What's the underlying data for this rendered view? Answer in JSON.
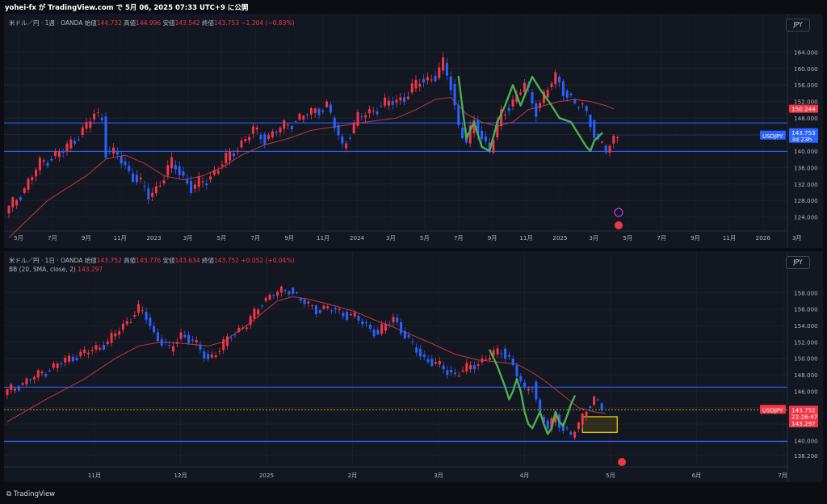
{
  "header": {
    "title": "yohei-fx が TradingView.com で 5月 06, 2025 07:33 UTC+9 に公開"
  },
  "footer": {
    "brand": "TradingView"
  },
  "colors": {
    "up": "#f23645",
    "down": "#2962ff",
    "wave": "#4caf50",
    "ma": "#c2373f",
    "hline": "#2962ff",
    "box": "#f5d60a",
    "background": "#131722"
  },
  "pane_weekly": {
    "symbol_title": "米ドル／円 · 1週 · OANDA",
    "o_label": "始値",
    "o_value": "144.732",
    "h_label": "高値",
    "h_value": "144.996",
    "l_label": "安値",
    "l_value": "143.542",
    "c_label": "終値",
    "c_value": "143.753",
    "change": "−1.204 (−0.83%)",
    "currency": "JPY",
    "price_tag": {
      "symbol": "USDJPY",
      "value": "143.753",
      "countdown": "3d 23h"
    },
    "ma_tag": "150.244"
  },
  "pane_daily": {
    "symbol_title": "米ドル／円 · 1日 · OANDA",
    "o_label": "始値",
    "o_value": "143.752",
    "h_label": "高値",
    "h_value": "143.776",
    "l_label": "安値",
    "l_value": "143.634",
    "c_label": "終値",
    "c_value": "143.752",
    "change": "+0.052 (+0.04%)",
    "indicator": "BB (20, SMA, close, 2)",
    "indicator_value": "143.297",
    "currency": "JPY",
    "price_tag": {
      "symbol": "USDJPY",
      "value": "143.752",
      "countdown": "22:26:47",
      "bb": "143.297"
    }
  },
  "chart_data": [
    {
      "type": "candlestick",
      "title": "米ドル／円 · 1週 · OANDA",
      "ylim": [
        121,
        167
      ],
      "yticks": [
        "164.000",
        "160.000",
        "156.000",
        "152.000",
        "148.000",
        "144.000",
        "140.000",
        "136.000",
        "132.000",
        "128.000",
        "124.000"
      ],
      "xticks": [
        "5月",
        "7月",
        "9月",
        "11月",
        "2023",
        "3月",
        "5月",
        "7月",
        "9月",
        "11月",
        "2024",
        "3月",
        "5月",
        "7月",
        "9月",
        "11月",
        "2025",
        "3月",
        "5月",
        "7月",
        "9月",
        "11月",
        "2026",
        "3月"
      ],
      "path": [
        [
          0,
          126
        ],
        [
          4,
          131
        ],
        [
          8,
          137
        ],
        [
          14,
          140
        ],
        [
          20,
          146
        ],
        [
          22,
          149
        ],
        [
          24,
          148
        ],
        [
          25,
          140
        ],
        [
          28,
          139
        ],
        [
          30,
          136
        ],
        [
          34,
          132
        ],
        [
          36,
          129
        ],
        [
          38,
          131
        ],
        [
          42,
          137
        ],
        [
          44,
          135
        ],
        [
          47,
          131
        ],
        [
          51,
          133
        ],
        [
          55,
          137
        ],
        [
          59,
          141
        ],
        [
          63,
          145
        ],
        [
          66,
          143
        ],
        [
          71,
          146
        ],
        [
          77,
          149
        ],
        [
          82,
          151
        ],
        [
          84,
          146
        ],
        [
          86,
          141
        ],
        [
          90,
          148
        ],
        [
          96,
          151
        ],
        [
          102,
          153
        ],
        [
          106,
          157
        ],
        [
          110,
          158
        ],
        [
          112,
          161
        ],
        [
          114,
          156
        ],
        [
          116,
          146
        ],
        [
          118,
          142
        ],
        [
          120,
          147
        ],
        [
          124,
          140
        ],
        [
          127,
          149
        ],
        [
          130,
          152
        ],
        [
          133,
          156
        ],
        [
          136,
          150
        ],
        [
          139,
          155
        ],
        [
          141,
          158
        ],
        [
          143,
          155
        ],
        [
          146,
          151
        ],
        [
          148,
          151
        ],
        [
          150,
          147
        ],
        [
          152,
          142
        ],
        [
          154,
          140
        ],
        [
          156,
          143
        ],
        [
          157,
          143.8
        ]
      ],
      "moving_average": [
        [
          0,
          119
        ],
        [
          10,
          128
        ],
        [
          20,
          134
        ],
        [
          25,
          138
        ],
        [
          30,
          139
        ],
        [
          35,
          137
        ],
        [
          40,
          134
        ],
        [
          45,
          133
        ],
        [
          50,
          134
        ],
        [
          55,
          136
        ],
        [
          60,
          139
        ],
        [
          66,
          141.5
        ],
        [
          72,
          143
        ],
        [
          78,
          145
        ],
        [
          85,
          146
        ],
        [
          92,
          147
        ],
        [
          100,
          148
        ],
        [
          105,
          150
        ],
        [
          110,
          152.5
        ],
        [
          114,
          153
        ],
        [
          118,
          149
        ],
        [
          122,
          147
        ],
        [
          126,
          146
        ],
        [
          130,
          147
        ],
        [
          134,
          150
        ],
        [
          138,
          151
        ],
        [
          142,
          152
        ],
        [
          146,
          152.5
        ],
        [
          150,
          152
        ],
        [
          154,
          151
        ],
        [
          156,
          150.2
        ]
      ],
      "horizontal_lines": [
        146.8,
        139.9
      ],
      "dotted_last_price": 143.753,
      "wave_overlay": [
        [
          116,
          158
        ],
        [
          118,
          143
        ],
        [
          120,
          147
        ],
        [
          122,
          141
        ],
        [
          124,
          140
        ],
        [
          126,
          147
        ],
        [
          128,
          151
        ],
        [
          130,
          156
        ],
        [
          132,
          151
        ],
        [
          135,
          158
        ],
        [
          137,
          155
        ],
        [
          140,
          151
        ],
        [
          142,
          148
        ],
        [
          145,
          147
        ],
        [
          147,
          144
        ],
        [
          149,
          141
        ],
        [
          150,
          140
        ],
        [
          151,
          142.5
        ],
        [
          153,
          144.3
        ]
      ]
    },
    {
      "type": "candlestick",
      "title": "米ドル／円 · 1日 · OANDA",
      "ylim": [
        137,
        159.5
      ],
      "yticks": [
        "158.000",
        "156.000",
        "154.000",
        "152.000",
        "150.000",
        "148.000",
        "146.000",
        "144.000",
        "142.000",
        "140.000",
        "138.200"
      ],
      "xticks": [
        "11月",
        "12月",
        "2025",
        "2月",
        "3月",
        "4月",
        "5月",
        "6月",
        "7月"
      ],
      "path": [
        [
          0,
          146
        ],
        [
          8,
          148
        ],
        [
          16,
          150
        ],
        [
          22,
          151
        ],
        [
          26,
          152
        ],
        [
          30,
          154
        ],
        [
          34,
          156
        ],
        [
          36,
          155
        ],
        [
          38,
          153
        ],
        [
          42,
          151
        ],
        [
          45,
          153
        ],
        [
          48,
          152
        ],
        [
          52,
          150
        ],
        [
          55,
          151
        ],
        [
          58,
          153
        ],
        [
          62,
          154
        ],
        [
          66,
          157
        ],
        [
          70,
          158
        ],
        [
          73,
          158.5
        ],
        [
          76,
          157
        ],
        [
          80,
          156
        ],
        [
          84,
          156
        ],
        [
          90,
          155
        ],
        [
          96,
          153
        ],
        [
          100,
          155
        ],
        [
          104,
          152
        ],
        [
          108,
          150
        ],
        [
          112,
          149
        ],
        [
          116,
          148
        ],
        [
          120,
          149
        ],
        [
          124,
          150
        ],
        [
          128,
          151
        ],
        [
          130,
          150
        ],
        [
          132,
          148
        ],
        [
          134,
          146
        ],
        [
          136,
          147
        ],
        [
          138,
          143
        ],
        [
          140,
          141.5
        ],
        [
          142,
          143
        ],
        [
          144,
          141.5
        ],
        [
          146,
          140.5
        ],
        [
          148,
          142
        ],
        [
          150,
          144
        ],
        [
          152,
          145
        ],
        [
          154,
          143.8
        ]
      ],
      "moving_average": [
        [
          0,
          142.3
        ],
        [
          10,
          145
        ],
        [
          20,
          147.5
        ],
        [
          28,
          150
        ],
        [
          34,
          151.5
        ],
        [
          40,
          152
        ],
        [
          46,
          151.8
        ],
        [
          52,
          151.5
        ],
        [
          56,
          152
        ],
        [
          62,
          154
        ],
        [
          66,
          155.5
        ],
        [
          70,
          157
        ],
        [
          74,
          157.5
        ],
        [
          78,
          157.2
        ],
        [
          84,
          156.5
        ],
        [
          90,
          155.7
        ],
        [
          96,
          154.5
        ],
        [
          100,
          153.8
        ],
        [
          104,
          153
        ],
        [
          110,
          151.8
        ],
        [
          116,
          150.5
        ],
        [
          122,
          149.8
        ],
        [
          128,
          149.5
        ],
        [
          132,
          149.3
        ],
        [
          136,
          148.3
        ],
        [
          140,
          147
        ],
        [
          144,
          145.5
        ],
        [
          148,
          144
        ],
        [
          152,
          143.5
        ],
        [
          155,
          143.3
        ]
      ],
      "horizontal_lines": [
        146.5,
        139.9
      ],
      "current_price_line": 143.752,
      "wave_overlay": [
        [
          125,
          151
        ],
        [
          127,
          149
        ],
        [
          129,
          146.5
        ],
        [
          130,
          145
        ],
        [
          131,
          146
        ],
        [
          132,
          147.5
        ],
        [
          133,
          146
        ],
        [
          134,
          143.5
        ],
        [
          135,
          142
        ],
        [
          136,
          141.5
        ],
        [
          137,
          142.5
        ],
        [
          138,
          143.5
        ],
        [
          139,
          142
        ],
        [
          140,
          140.8
        ],
        [
          141,
          141.5
        ],
        [
          142,
          143.5
        ],
        [
          143,
          142.3
        ],
        [
          144,
          141.8
        ],
        [
          145,
          143
        ],
        [
          146,
          144.4
        ],
        [
          147,
          145.4
        ]
      ],
      "target_box": {
        "x": [
          149,
          158
        ],
        "y": [
          141.0,
          142.9
        ]
      }
    }
  ]
}
